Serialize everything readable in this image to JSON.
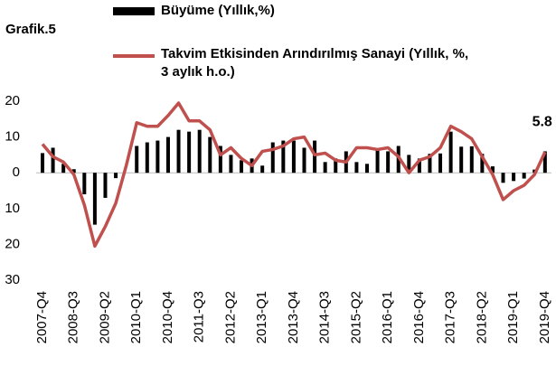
{
  "chart_data": {
    "type": "bar_line",
    "title": "Grafik.5",
    "categories": [
      "2007-Q4",
      null,
      null,
      "2008-Q3",
      null,
      null,
      "2009-Q2",
      null,
      null,
      "2010-Q1",
      null,
      null,
      "2010-Q4",
      null,
      null,
      "2011-Q3",
      null,
      null,
      "2012-Q2",
      null,
      null,
      "2013-Q1",
      null,
      null,
      "2013-Q4",
      null,
      null,
      "2014-Q3",
      null,
      null,
      "2015-Q2",
      null,
      null,
      "2016-Q1",
      null,
      null,
      "2016-Q4",
      null,
      null,
      "2017-Q3",
      null,
      null,
      "2018-Q2",
      null,
      null,
      "2019-Q1",
      null,
      null,
      "2019-Q4"
    ],
    "series": [
      {
        "name": "Büyüme (Yıllık,%)",
        "type": "bar",
        "color": "#000000",
        "values": [
          5.5,
          7,
          2.5,
          1,
          -6,
          -14.5,
          -7,
          -1.5,
          0,
          7.5,
          8.5,
          9,
          10,
          12,
          11.5,
          12,
          10,
          7.5,
          5,
          3.5,
          4,
          2,
          8.5,
          9,
          9,
          7,
          9,
          3,
          4,
          6,
          3,
          2.5,
          6.5,
          6,
          7.5,
          5,
          4,
          5.3,
          5.4,
          11.5,
          7.3,
          7.4,
          5.3,
          1.8,
          -2.8,
          -2.3,
          -1.6,
          0.9,
          6
        ]
      },
      {
        "name": "Takvim Etkisinden Arındırılmış Sanayi (Yıllık, %, 3 aylık h.o.)",
        "type": "line",
        "color": "#c0504d",
        "label_last": true,
        "values": [
          8,
          4.5,
          3,
          -0.5,
          -9,
          -20.5,
          -15,
          -8.5,
          2,
          14,
          13,
          13,
          16,
          19.5,
          14.5,
          14.5,
          12,
          5,
          7,
          4,
          2,
          6,
          6.5,
          7.5,
          9.5,
          10,
          5,
          5.5,
          3.5,
          3,
          7,
          7,
          6.5,
          7,
          4.5,
          0,
          3.5,
          4.5,
          7,
          13,
          11.5,
          9.5,
          4.5,
          -0.5,
          -7.5,
          -5,
          -3.5,
          -0.5,
          5.8
        ]
      }
    ],
    "ylim": [
      -30,
      20
    ],
    "yticks": [
      20,
      10,
      0,
      {
        "value": -10,
        "label": "10"
      },
      {
        "value": -20,
        "label": "20"
      },
      {
        "value": -30,
        "label": "30"
      }
    ],
    "grid": false
  }
}
